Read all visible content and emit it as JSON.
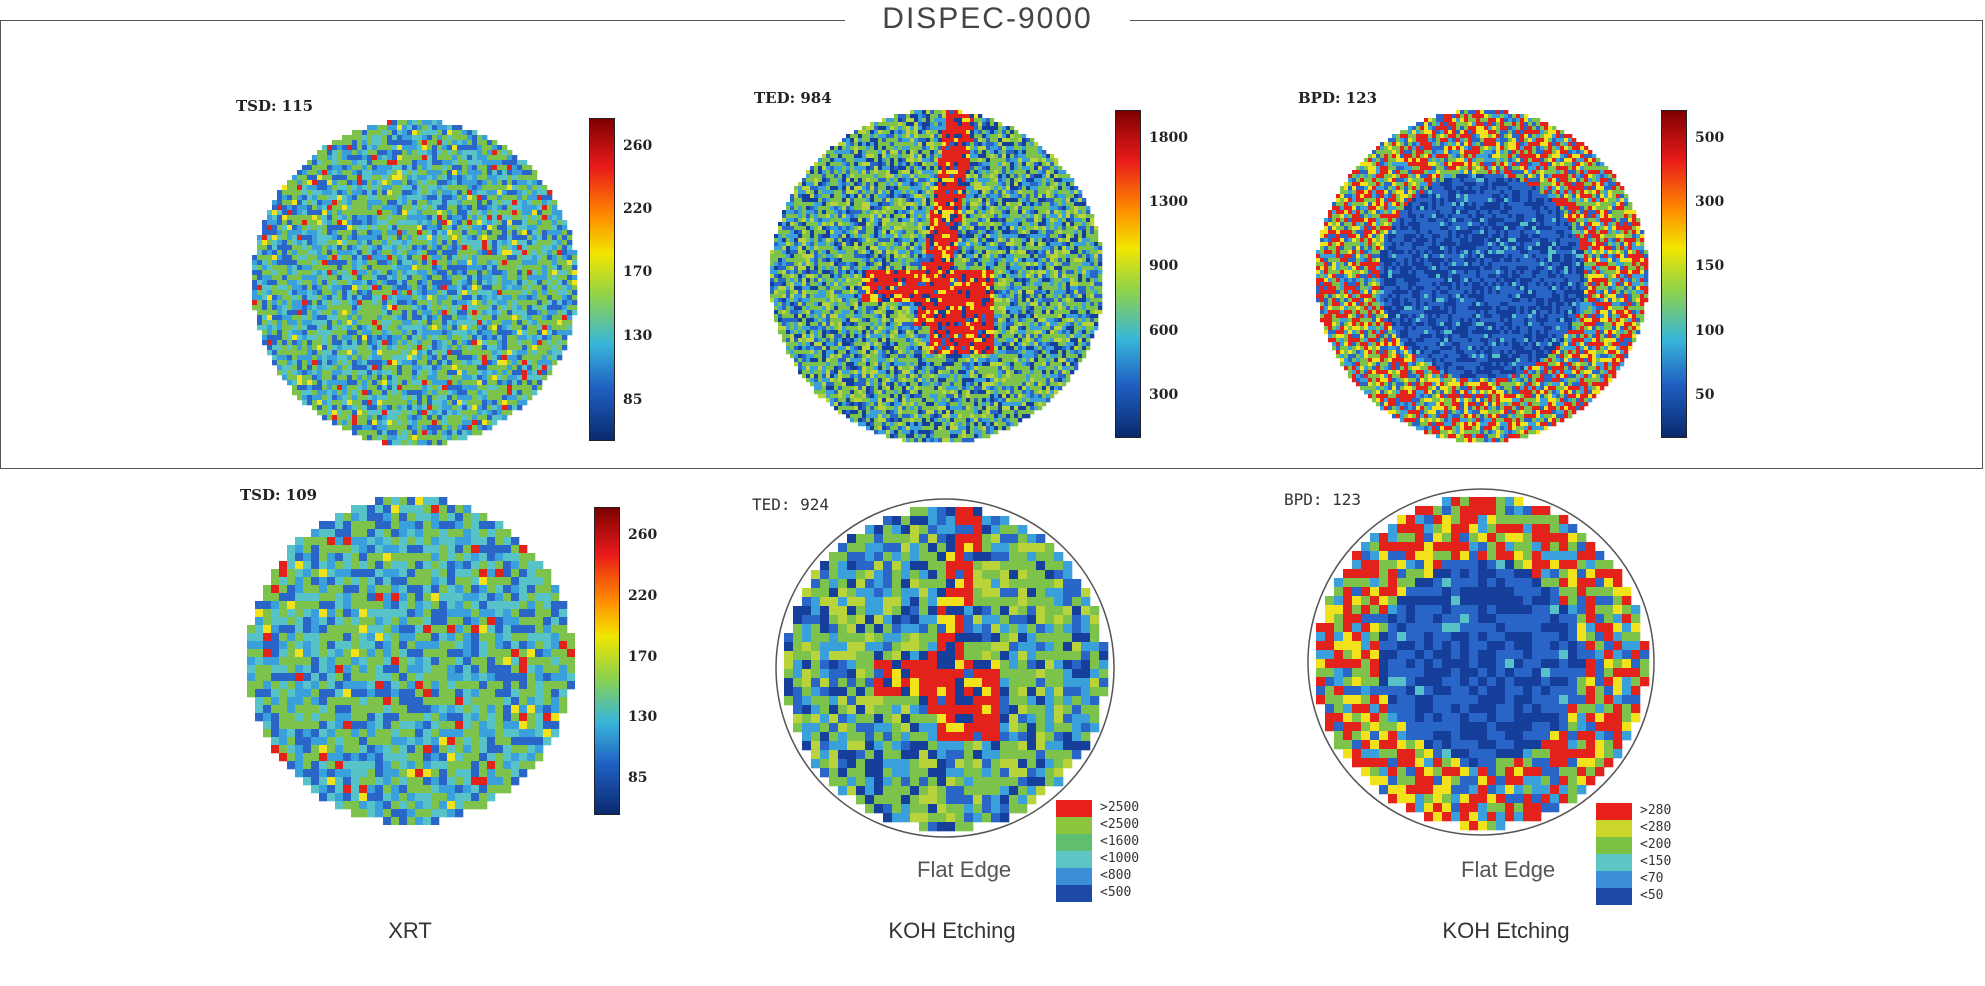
{
  "title": "DISPEC-9000",
  "top_row": [
    {
      "id": "tsd",
      "label": "TSD: 115",
      "ticks": [
        "260",
        "220",
        "170",
        "130",
        "85"
      ],
      "pattern": "uniform"
    },
    {
      "id": "ted",
      "label": "TED: 984",
      "ticks": [
        "1800",
        "1300",
        "900",
        "600",
        "300"
      ],
      "pattern": "center-branch"
    },
    {
      "id": "bpd",
      "label": "BPD: 123",
      "ticks": [
        "500",
        "300",
        "150",
        "100",
        "50"
      ],
      "pattern": "edge-ring"
    }
  ],
  "bottom_row": [
    {
      "id": "tsd2",
      "label": "TSD: 109",
      "ticks": [
        "260",
        "220",
        "170",
        "130",
        "85"
      ],
      "pattern": "uniform",
      "caption": "XRT"
    },
    {
      "id": "ted2",
      "label": "TED: 924",
      "legend": [
        ">2500",
        "<2500",
        "<1600",
        "<1000",
        "<800",
        "<500"
      ],
      "legend_colors": [
        "#e8201c",
        "#8cc63f",
        "#5fbf6e",
        "#5ec4c4",
        "#3a8fd6",
        "#1c4aa6"
      ],
      "flat_edge": "Flat Edge",
      "caption": "KOH Etching",
      "pattern": "center-branch"
    },
    {
      "id": "bpd2",
      "label": "BPD: 123",
      "legend": [
        ">280",
        "<280",
        "<200",
        "<150",
        "<70",
        "<50"
      ],
      "legend_colors": [
        "#e8201c",
        "#cbd62a",
        "#7cc242",
        "#5ec4c4",
        "#3a8fd6",
        "#1c4aa6"
      ],
      "flat_edge": "Flat Edge",
      "caption": "KOH Etching",
      "pattern": "edge-ring"
    }
  ]
}
